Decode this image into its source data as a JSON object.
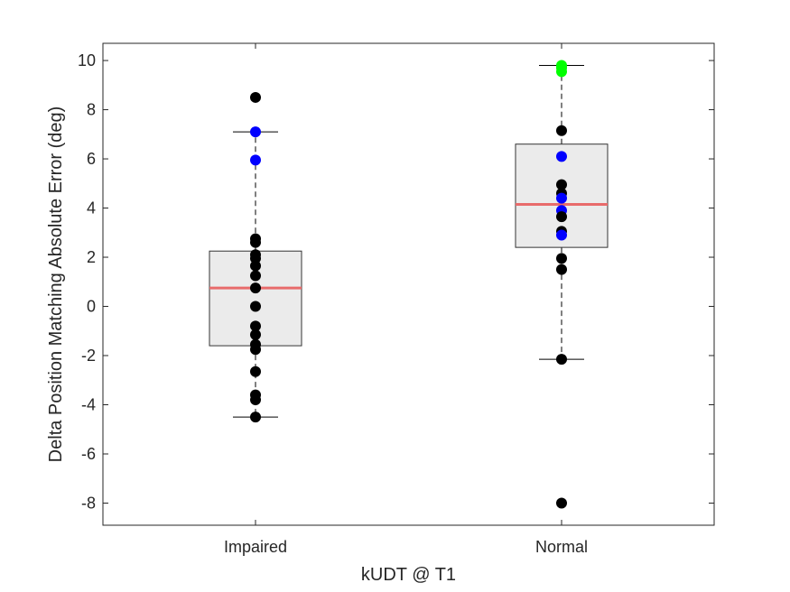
{
  "chart_data": {
    "type": "box",
    "xlabel": "kUDT @ T1",
    "ylabel": "Delta Position Matching Absolute Error (deg)",
    "ylim": [
      -8.9,
      10.7
    ],
    "yticks": [
      -8,
      -6,
      -4,
      -2,
      0,
      2,
      4,
      6,
      8,
      10
    ],
    "categories": [
      "Impaired",
      "Normal"
    ],
    "grid": false,
    "colors": {
      "box_fill": "#ebebeb",
      "box_edge": "#333333",
      "median": "#e86b6b",
      "point_default": "#000000",
      "point_blue": "#0000ff",
      "point_green": "#00ff00"
    },
    "boxes": [
      {
        "category": "Impaired",
        "whisker_low": -4.5,
        "q1": -1.6,
        "median": 0.75,
        "q3": 2.25,
        "whisker_high": 7.1,
        "points": [
          {
            "y": 8.5,
            "color": "black"
          },
          {
            "y": 7.1,
            "color": "blue"
          },
          {
            "y": 5.95,
            "color": "blue"
          },
          {
            "y": 2.75,
            "color": "black"
          },
          {
            "y": 2.6,
            "color": "black"
          },
          {
            "y": 2.1,
            "color": "black"
          },
          {
            "y": 1.95,
            "color": "black"
          },
          {
            "y": 1.65,
            "color": "black"
          },
          {
            "y": 1.25,
            "color": "black"
          },
          {
            "y": 0.75,
            "color": "black"
          },
          {
            "y": 0.0,
            "color": "black"
          },
          {
            "y": -0.8,
            "color": "black"
          },
          {
            "y": -1.15,
            "color": "black"
          },
          {
            "y": -1.55,
            "color": "black"
          },
          {
            "y": -1.75,
            "color": "black"
          },
          {
            "y": -2.65,
            "color": "black"
          },
          {
            "y": -3.6,
            "color": "black"
          },
          {
            "y": -3.8,
            "color": "black"
          },
          {
            "y": -4.5,
            "color": "black"
          }
        ]
      },
      {
        "category": "Normal",
        "whisker_low": -2.15,
        "q1": 2.4,
        "median": 4.15,
        "q3": 6.6,
        "whisker_high": 9.8,
        "points": [
          {
            "y": 9.8,
            "color": "green"
          },
          {
            "y": 9.7,
            "color": "green"
          },
          {
            "y": 9.55,
            "color": "green"
          },
          {
            "y": 7.15,
            "color": "black"
          },
          {
            "y": 6.1,
            "color": "blue"
          },
          {
            "y": 4.95,
            "color": "black"
          },
          {
            "y": 4.6,
            "color": "black"
          },
          {
            "y": 4.4,
            "color": "blue"
          },
          {
            "y": 3.9,
            "color": "blue"
          },
          {
            "y": 3.65,
            "color": "black"
          },
          {
            "y": 3.05,
            "color": "black"
          },
          {
            "y": 2.9,
            "color": "blue"
          },
          {
            "y": 1.95,
            "color": "black"
          },
          {
            "y": 1.5,
            "color": "black"
          },
          {
            "y": -2.15,
            "color": "black"
          },
          {
            "y": -8.0,
            "color": "black"
          }
        ]
      }
    ]
  }
}
